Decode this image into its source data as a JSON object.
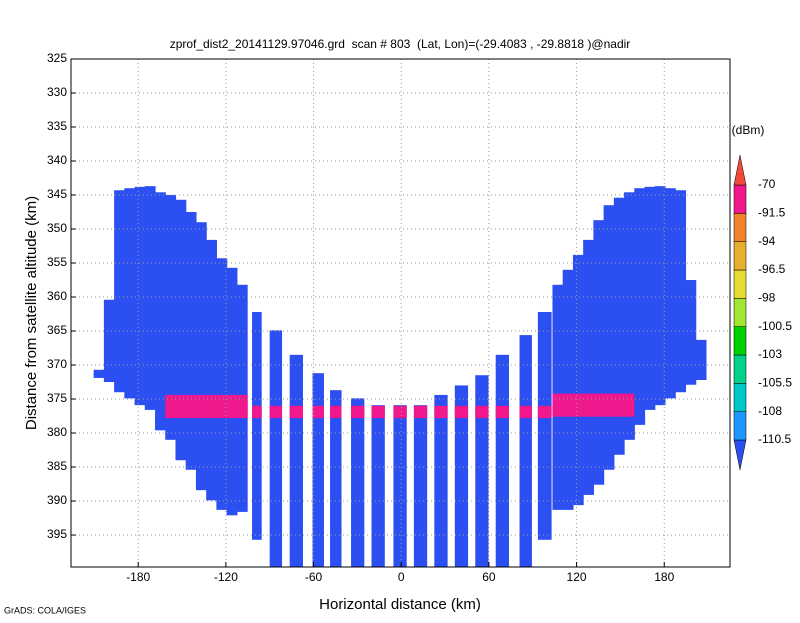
{
  "chart_data": {
    "type": "profile",
    "title": "zprof_dist2_20141129.97046.grd  scan # 803  (Lat, Lon)=(-29.4083 , -29.8818 )@nadir",
    "x_label": "Horizontal distance (km)",
    "y_label": "Distance from satellite altitude (km)",
    "xlim": [
      -226,
      225
    ],
    "ylim": [
      399.7,
      325
    ],
    "xticks": [
      -180,
      -120,
      -60,
      0,
      60,
      120,
      180
    ],
    "yticks": [
      325,
      330,
      335,
      340,
      345,
      350,
      355,
      360,
      365,
      370,
      375,
      380,
      385,
      390,
      395
    ],
    "grid": true,
    "beams": {
      "value": -111,
      "x": [
        -207,
        -200,
        -193,
        -186,
        -179,
        -172,
        -165,
        -158,
        -151,
        -144,
        -137,
        -130,
        -123,
        -116,
        -109,
        -99,
        -86,
        -72,
        -57,
        -45,
        -30,
        -16,
        -1,
        13,
        27,
        41,
        55,
        69,
        85,
        98,
        107,
        114,
        121,
        128,
        135,
        142,
        149,
        156,
        163,
        170,
        177,
        184,
        191,
        198,
        205
      ],
      "top": [
        370.7,
        360.4,
        344.3,
        344.0,
        343.8,
        343.7,
        344.6,
        345.0,
        345.7,
        347.5,
        349.0,
        351.6,
        354.3,
        355.7,
        358.2,
        362.2,
        364.9,
        368.5,
        371.2,
        373.7,
        374.9,
        375.9,
        375.9,
        375.9,
        374.4,
        373.0,
        371.5,
        368.5,
        365.6,
        362.2,
        358.2,
        356.0,
        353.8,
        351.6,
        348.7,
        346.5,
        345.4,
        344.6,
        344.0,
        343.8,
        343.7,
        344.0,
        344.3,
        357.5,
        366.3
      ],
      "bottom": [
        371.9,
        372.5,
        374.0,
        374.9,
        375.9,
        376.6,
        379.6,
        381.0,
        384.0,
        385.4,
        388.4,
        389.9,
        391.3,
        392.1,
        391.6,
        395.7,
        399.7,
        399.7,
        399.7,
        399.7,
        399.7,
        399.7,
        399.7,
        399.7,
        399.7,
        399.7,
        399.7,
        399.7,
        399.7,
        395.7,
        391.3,
        391.3,
        390.6,
        389.1,
        387.6,
        385.4,
        383.2,
        381.0,
        378.8,
        376.6,
        375.9,
        374.9,
        374.0,
        372.9,
        372.2
      ]
    },
    "band": {
      "value": -80,
      "top": [
        null,
        null,
        null,
        null,
        null,
        null,
        null,
        374.4,
        374.4,
        374.4,
        374.4,
        374.4,
        374.4,
        374.4,
        374.4,
        376.0,
        376.0,
        376.0,
        376.0,
        376.0,
        376.0,
        376.0,
        376.0,
        376.0,
        376.0,
        376.0,
        376.0,
        376.0,
        376.0,
        376.0,
        374.2,
        374.2,
        374.2,
        374.2,
        374.2,
        374.2,
        374.2,
        374.2,
        null,
        null,
        null,
        null,
        null,
        null,
        null
      ],
      "bottom": [
        null,
        null,
        null,
        null,
        null,
        null,
        null,
        377.8,
        377.8,
        377.8,
        377.8,
        377.8,
        377.8,
        377.8,
        377.8,
        377.8,
        377.8,
        377.8,
        377.8,
        377.8,
        377.8,
        377.8,
        377.8,
        377.8,
        377.8,
        377.8,
        377.8,
        377.8,
        377.8,
        377.8,
        377.6,
        377.6,
        377.6,
        377.6,
        377.6,
        377.6,
        377.6,
        377.6,
        null,
        null,
        null,
        null,
        null,
        null,
        null
      ]
    },
    "colorbar": {
      "unit": "(dBm)",
      "levels": [
        -110.5,
        -108,
        -105.5,
        -103,
        -100.5,
        -98,
        -96.5,
        -94,
        -91.5,
        -70
      ],
      "colors": [
        "#2c4ff2",
        "#1e96ff",
        "#00c8c8",
        "#00d28c",
        "#00d200",
        "#a0e632",
        "#e6dc32",
        "#e6af2d",
        "#f08228",
        "#f0188c",
        "#f04a3c"
      ]
    }
  },
  "footer": "GrADS: COLA/IGES"
}
